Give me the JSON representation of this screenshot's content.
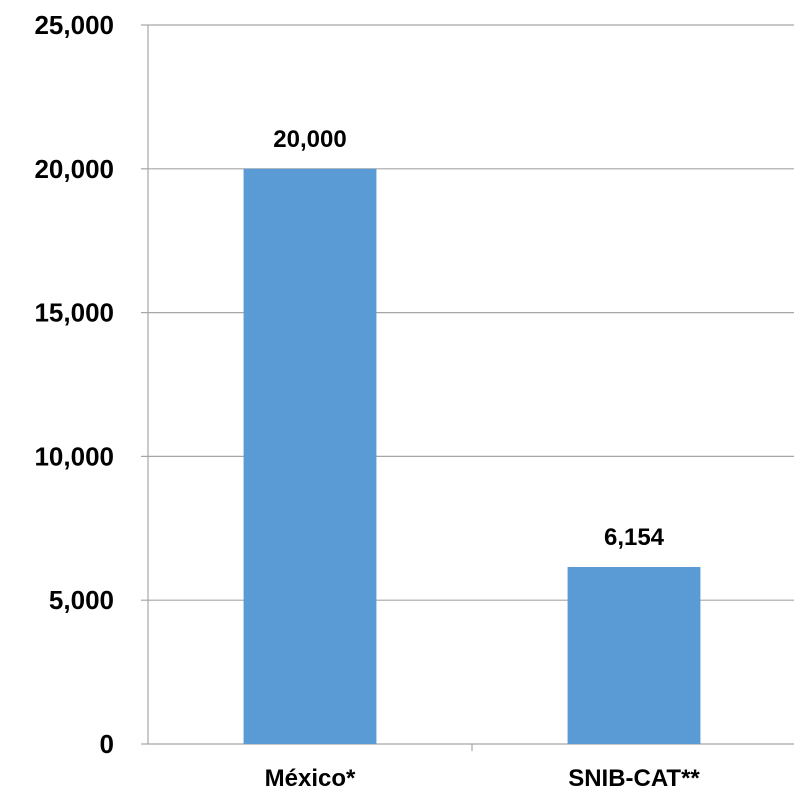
{
  "chart_data": {
    "type": "bar",
    "categories": [
      "México*",
      "SNIB-CAT**"
    ],
    "values": [
      20000,
      6154
    ],
    "value_labels": [
      "20,000",
      "6,154"
    ],
    "y_ticks": [
      0,
      5000,
      10000,
      15000,
      20000,
      25000
    ],
    "y_tick_labels": [
      "0",
      "5,000",
      "10,000",
      "15,000",
      "20,000",
      "25,000"
    ],
    "ylim": [
      0,
      25000
    ],
    "title": "",
    "xlabel": "",
    "ylabel": "",
    "grid": true,
    "legend": "none",
    "bar_color": "#5b9bd5"
  }
}
